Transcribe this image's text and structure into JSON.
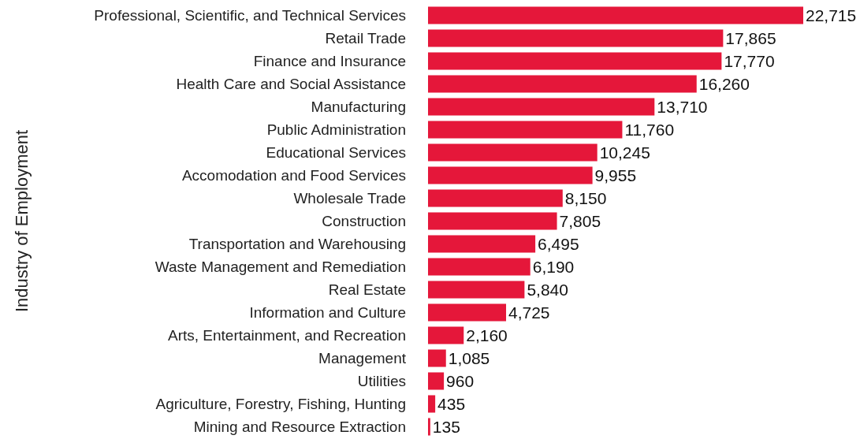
{
  "chart_data": {
    "type": "bar",
    "orientation": "horizontal",
    "relative": false,
    "ylabel": "Industry of Employment",
    "categories": [
      "Professional, Scientific, and Technical Services",
      "Retail Trade",
      "Finance and Insurance",
      "Health Care and Social Assistance",
      "Manufacturing",
      "Public Administration",
      "Educational Services",
      "Accomodation and Food Services",
      "Wholesale Trade",
      "Construction",
      "Transportation and Warehousing",
      "Waste Management and Remediation",
      "Real Estate",
      "Information and Culture",
      "Arts, Entertainment, and Recreation",
      "Management",
      "Utilities",
      "Agriculture, Forestry, Fishing, Hunting",
      "Mining and Resource Extraction"
    ],
    "values": [
      22715,
      17865,
      17770,
      16260,
      13710,
      11760,
      10245,
      9955,
      8150,
      7805,
      6495,
      6190,
      5840,
      4725,
      2160,
      1085,
      960,
      435,
      135
    ],
    "value_labels": [
      "22,715",
      "17,865",
      "17,770",
      "16,260",
      "13,710",
      "11,760",
      "10,245",
      "9,955",
      "8,150",
      "7,805",
      "6,495",
      "6,190",
      "5,840",
      "4,725",
      "2,160",
      "1,085",
      "960",
      "435",
      "135"
    ],
    "color": "#e5173a",
    "tick_labels": "y"
  }
}
